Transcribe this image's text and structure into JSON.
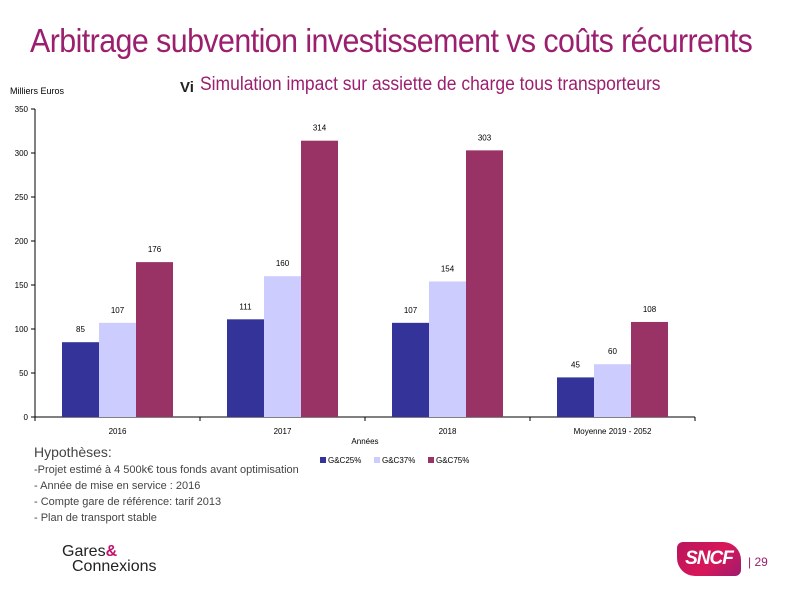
{
  "header": {
    "title": "Arbitrage subvention investissement vs coûts récurrents",
    "subtitle_prefix": "Vi",
    "subtitle": "Simulation impact sur assiette de charge tous transporteurs"
  },
  "chart_data": {
    "type": "bar",
    "ylabel": "Milliers Euros",
    "xlabel": "Années",
    "ylim": [
      0,
      350
    ],
    "yticks": [
      0,
      50,
      100,
      150,
      200,
      250,
      300,
      350
    ],
    "categories": [
      "2016",
      "2017",
      "2018",
      "Moyenne 2019 - 2052"
    ],
    "series": [
      {
        "name": "G&C25%",
        "values": [
          85,
          111,
          107,
          45
        ],
        "color": "#333399"
      },
      {
        "name": "G&C37%",
        "values": [
          107,
          160,
          154,
          60
        ],
        "color": "#ccccff"
      },
      {
        "name": "G&C75%",
        "values": [
          176,
          314,
          303,
          108
        ],
        "color": "#993366"
      }
    ],
    "legend_position": "bottom-center",
    "grid": false
  },
  "hypotheses": {
    "title": "Hypothèses:",
    "items": [
      "-Projet estimé à 4 500k€ tous fonds avant optimisation",
      "- Année de mise en service : 2016",
      "- Compte gare de référence: tarif 2013",
      "- Plan de transport stable"
    ]
  },
  "footer": {
    "logo_line1": "Gares",
    "logo_amp": "&",
    "logo_line2": "Connexions",
    "sncf_logo": "SNCF",
    "page_number": "| 29"
  }
}
